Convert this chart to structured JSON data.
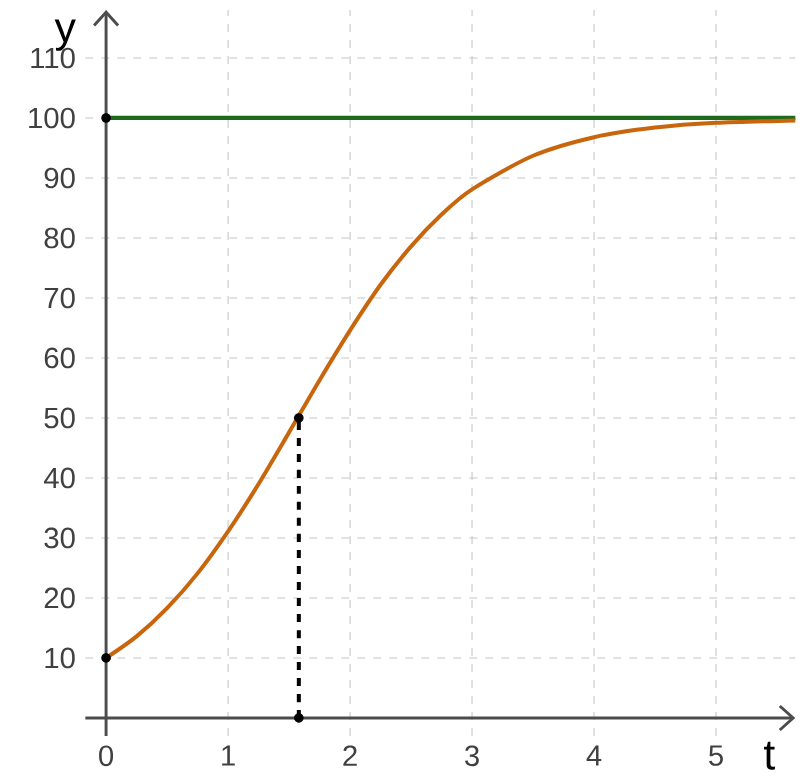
{
  "chart_data": {
    "type": "line",
    "xlabel": "t",
    "ylabel": "y",
    "xlim": [
      -0.17,
      5.65
    ],
    "ylim": [
      -3,
      118
    ],
    "xticks": [
      0,
      1,
      2,
      3,
      4,
      5
    ],
    "yticks": [
      10,
      20,
      30,
      40,
      50,
      60,
      70,
      80,
      90,
      100,
      110
    ],
    "grid": true,
    "series": [
      {
        "color": "#c8660e",
        "x": [
          0,
          0.25,
          0.5,
          0.75,
          1,
          1.25,
          1.5,
          1.75,
          2,
          2.25,
          2.5,
          2.75,
          3,
          3.5,
          4,
          4.5,
          5,
          5.65
        ],
        "values": [
          10,
          13.6,
          18.3,
          24.1,
          31.1,
          39,
          47.6,
          56.3,
          64.6,
          72.2,
          78.6,
          83.9,
          88.1,
          93.7,
          96.8,
          98.4,
          99.2,
          99.6
        ]
      },
      {
        "type": "line",
        "color": "#000000",
        "line_style": "dashed",
        "x": [
          1.58,
          1.58
        ],
        "values": [
          0,
          50
        ]
      },
      {
        "type": "scatter",
        "color": "#000000",
        "marker": "circle",
        "x": [
          0,
          0,
          1.58,
          1.58
        ],
        "values": [
          10,
          100,
          50,
          0
        ]
      }
    ],
    "ref_lines": [
      {
        "axis": "y",
        "value": 100,
        "color": "#1e6b1e"
      }
    ]
  }
}
